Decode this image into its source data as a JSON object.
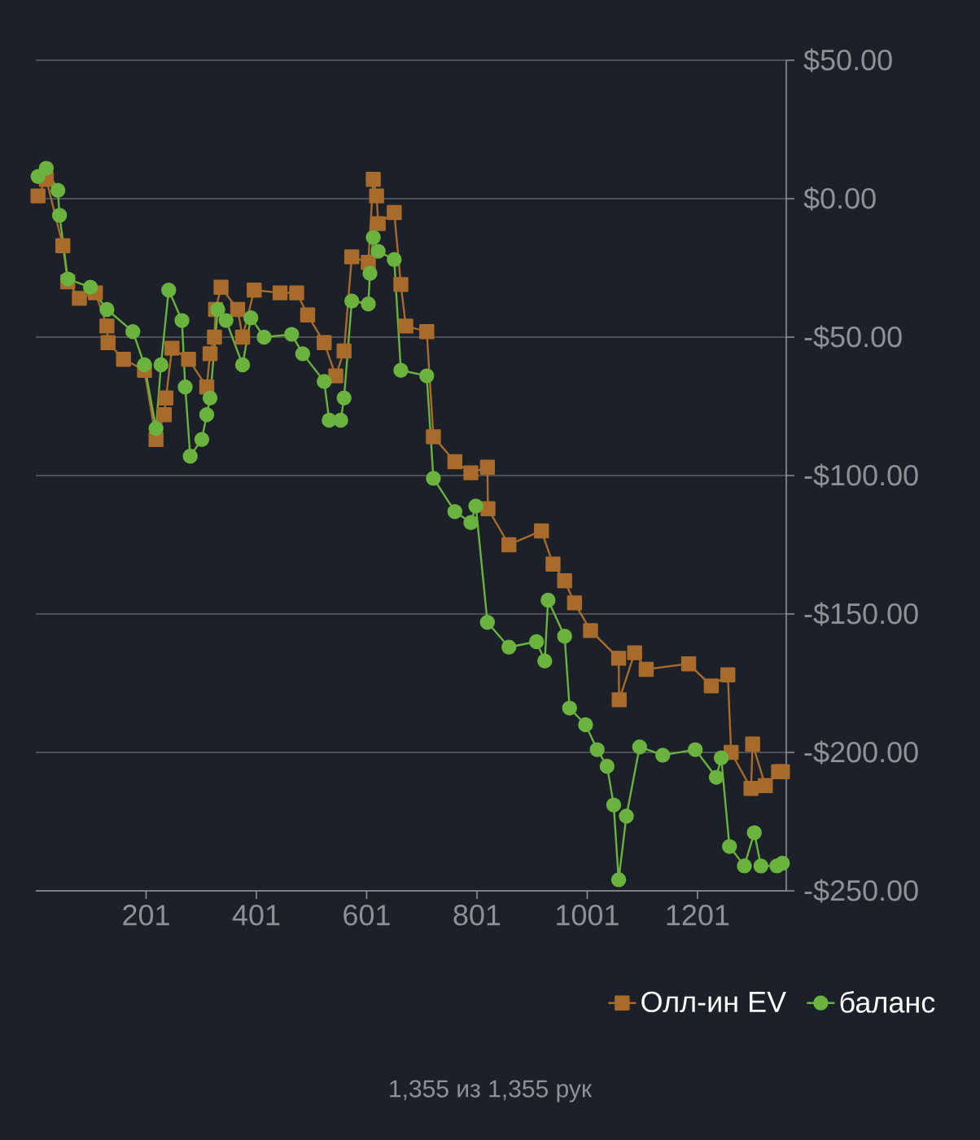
{
  "chart_data": {
    "type": "line",
    "xlim": [
      1,
      1362
    ],
    "ylim": [
      -250,
      50
    ],
    "xticks": [
      201,
      401,
      601,
      801,
      1001,
      1201
    ],
    "yticks": [
      {
        "value": 50,
        "label": "$50.00"
      },
      {
        "value": 0,
        "label": "$0.00"
      },
      {
        "value": -50,
        "label": "-$50.00"
      },
      {
        "value": -100,
        "label": "-$100.00"
      },
      {
        "value": -150,
        "label": "-$150.00"
      },
      {
        "value": -200,
        "label": "-$200.00"
      },
      {
        "value": -250,
        "label": "-$250.00"
      }
    ],
    "grid": "y",
    "legend": "bottom right",
    "line_style": "solid",
    "annotations": [
      "1,355 из 1,355 рук"
    ],
    "series": [
      {
        "name": "Олл-ин EV",
        "color": "#a86b2b",
        "marker": "square",
        "x": [
          5,
          20,
          50,
          59,
          80,
          109,
          130,
          132,
          160,
          198,
          219,
          234,
          237,
          248,
          278,
          311,
          317,
          325,
          327,
          337,
          367,
          376,
          397,
          444,
          474,
          494,
          524,
          545,
          560,
          574,
          604,
          613,
          619,
          622,
          651,
          663,
          672,
          710,
          722,
          761,
          790,
          820,
          821,
          859,
          918,
          939,
          960,
          978,
          1007,
          1058,
          1059,
          1087,
          1108,
          1185,
          1226,
          1256,
          1262,
          1298,
          1301,
          1324,
          1348,
          1355
        ],
        "values": [
          1,
          7,
          -17,
          -30,
          -36,
          -34,
          -46,
          -52,
          -58,
          -62,
          -87,
          -78,
          -72,
          -54,
          -58,
          -68,
          -56,
          -50,
          -40,
          -32,
          -40,
          -50,
          -33,
          -34,
          -34,
          -42,
          -52,
          -64,
          -55,
          -21,
          -23,
          7,
          1,
          -9,
          -5,
          -31,
          -46,
          -48,
          -86,
          -95,
          -99,
          -97,
          -112,
          -125,
          -120,
          -132,
          -138,
          -146,
          -156,
          -166,
          -181,
          -164,
          -170,
          -168,
          -176,
          -172,
          -200,
          -213,
          -197,
          -212,
          -207,
          -207
        ]
      },
      {
        "name": "баланс",
        "color": "#6ab33f",
        "marker": "circle",
        "x": [
          5,
          20,
          41,
          44,
          59,
          100,
          130,
          177,
          198,
          219,
          228,
          242,
          266,
          272,
          281,
          302,
          311,
          317,
          331,
          346,
          376,
          391,
          415,
          465,
          485,
          524,
          533,
          554,
          560,
          574,
          604,
          607,
          613,
          622,
          651,
          663,
          710,
          722,
          761,
          790,
          799,
          820,
          859,
          909,
          924,
          930,
          960,
          969,
          998,
          1019,
          1037,
          1049,
          1058,
          1072,
          1096,
          1138,
          1197,
          1235,
          1244,
          1259,
          1286,
          1304,
          1316,
          1345,
          1355
        ],
        "values": [
          8,
          11,
          3,
          -6,
          -29,
          -32,
          -40,
          -48,
          -60,
          -83,
          -60,
          -33,
          -44,
          -68,
          -93,
          -87,
          -78,
          -72,
          -40,
          -44,
          -60,
          -43,
          -50,
          -49,
          -56,
          -66,
          -80,
          -80,
          -72,
          -37,
          -38,
          -27,
          -14,
          -19,
          -22,
          -62,
          -64,
          -101,
          -113,
          -117,
          -111,
          -153,
          -162,
          -160,
          -167,
          -145,
          -158,
          -184,
          -190,
          -199,
          -205,
          -219,
          -246,
          -223,
          -198,
          -201,
          -199,
          -209,
          -202,
          -234,
          -241,
          -229,
          -241,
          -241,
          -240
        ]
      }
    ]
  }
}
